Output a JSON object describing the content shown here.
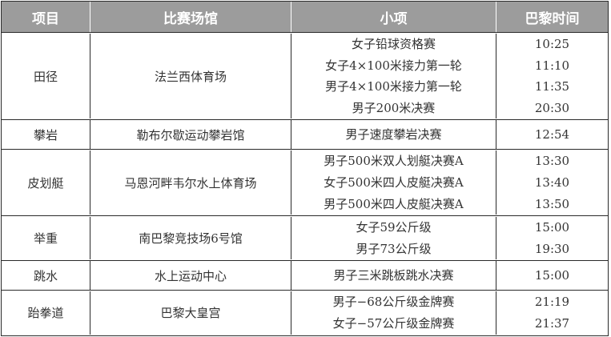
{
  "header": {
    "sport": "项目",
    "venue": "比赛场馆",
    "event": "小项",
    "time": "巴黎时间"
  },
  "groups": [
    {
      "sport": "田径",
      "venue": "法兰西体育场",
      "events": [
        {
          "name": "女子铅球资格赛",
          "time": "10:25"
        },
        {
          "name": "女子4×100米接力第一轮",
          "time": "11:10"
        },
        {
          "name": "男子4×100米接力第一轮",
          "time": "11:35"
        },
        {
          "name": "男子200米决赛",
          "time": "20:30"
        }
      ]
    },
    {
      "sport": "攀岩",
      "venue": "勒布尔歇运动攀岩馆",
      "events": [
        {
          "name": "男子速度攀岩决赛",
          "time": "12:54"
        }
      ]
    },
    {
      "sport": "皮划艇",
      "venue": "马恩河畔韦尔水上体育场",
      "events": [
        {
          "name": "男子500米双人划艇决赛A",
          "time": "13:30"
        },
        {
          "name": "女子500米四人皮艇决赛A",
          "time": "13:40"
        },
        {
          "name": "男子500米四人皮艇决赛A",
          "time": "13:50"
        }
      ]
    },
    {
      "sport": "举重",
      "venue": "南巴黎竞技场6号馆",
      "events": [
        {
          "name": "女子59公斤级",
          "time": "15:00"
        },
        {
          "name": "男子73公斤级",
          "time": "19:30"
        }
      ]
    },
    {
      "sport": "跳水",
      "venue": "水上运动中心",
      "events": [
        {
          "name": "男子三米跳板跳水决赛",
          "time": "15:00"
        }
      ]
    },
    {
      "sport": "跆拳道",
      "venue": "巴黎大皇宫",
      "events": [
        {
          "name": "男子−68公斤级金牌赛",
          "time": "21:19"
        },
        {
          "name": "女子−57公斤级金牌赛",
          "time": "21:37"
        }
      ]
    }
  ],
  "colors": {
    "header_bg": "#9c9c9c",
    "header_text": "#ffffff",
    "border": "#2a2a2a"
  }
}
